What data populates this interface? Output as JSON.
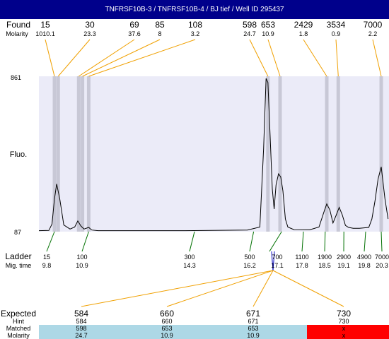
{
  "title": "TNFRSF10B-3 / TNFRSF10B-4 / BJ tief / Well ID 295437",
  "labels": {
    "found": "Found",
    "molarity": "Molarity",
    "fluo": "Fluo.",
    "ladder": "Ladder",
    "mig_time": "Mig. time",
    "expected": "Expected",
    "hint": "Hint",
    "matched": "Matched",
    "molarity_bottom": "Molarity"
  },
  "colors": {
    "title_bg": "#00008b",
    "plot_bg": "#ebebf8",
    "band": "#c8c8d6",
    "orange": "#f0a000",
    "green": "#007000",
    "blue": "#0000c0",
    "match_bg": "#add8e6",
    "nomatch_bg": "#ff0000",
    "trace": "#000000"
  },
  "chart_data": {
    "type": "line",
    "ylabel": "Fluo.",
    "ylim": [
      87,
      861
    ],
    "yticks": [
      "861",
      "87"
    ],
    "found": [
      {
        "size": "15",
        "molarity": "1010.1"
      },
      {
        "size": "30",
        "molarity": "23.3"
      },
      {
        "size": "69",
        "molarity": "37.6"
      },
      {
        "size": "85",
        "molarity": "8"
      },
      {
        "size": "108",
        "molarity": "3.2"
      },
      {
        "size": "598",
        "molarity": "24.7"
      },
      {
        "size": "653",
        "molarity": "10.9"
      },
      {
        "size": "2429",
        "molarity": "1.8"
      },
      {
        "size": "3534",
        "molarity": "0.9"
      },
      {
        "size": "7000",
        "molarity": "2.2"
      }
    ],
    "ladder": [
      {
        "size": "15",
        "time": "9.8"
      },
      {
        "size": "100",
        "time": "10.9"
      },
      {
        "size": "300",
        "time": "14.3"
      },
      {
        "size": "500",
        "time": "16.2"
      },
      {
        "size": "700",
        "time": "17.1"
      },
      {
        "size": "1100",
        "time": "17.8"
      },
      {
        "size": "1900",
        "time": "18.5"
      },
      {
        "size": "2900",
        "time": "19.1"
      },
      {
        "size": "4900",
        "time": "19.8"
      },
      {
        "size": "7000",
        "time": "20.3"
      }
    ],
    "trace_time": [
      9.3,
      9.62,
      9.72,
      9.8,
      9.87,
      9.97,
      10.1,
      10.3,
      10.45,
      10.55,
      10.65,
      10.75,
      10.9,
      11.0,
      11.2,
      14.0,
      16.0,
      16.4,
      16.52,
      16.6,
      16.66,
      16.72,
      16.8,
      16.86,
      16.92,
      17.0,
      17.07,
      17.14,
      17.22,
      17.3,
      17.5,
      18.0,
      18.3,
      18.47,
      18.55,
      18.65,
      18.75,
      18.85,
      18.95,
      19.05,
      19.15,
      19.25,
      19.4,
      19.6,
      19.9,
      20.0,
      20.1,
      20.2,
      20.3,
      20.42,
      20.52
    ],
    "trace_fluo": [
      92,
      93,
      125,
      250,
      325,
      250,
      120,
      100,
      110,
      140,
      115,
      100,
      108,
      95,
      92,
      92,
      95,
      110,
      500,
      850,
      830,
      600,
      300,
      200,
      320,
      375,
      360,
      290,
      150,
      110,
      97,
      96,
      110,
      190,
      225,
      195,
      130,
      168,
      208,
      170,
      118,
      108,
      104,
      104,
      108,
      150,
      240,
      350,
      410,
      250,
      150
    ],
    "expected": [
      {
        "expected": "584",
        "hint": "584",
        "matched": "598",
        "molarity": "24.7",
        "status": "matched"
      },
      {
        "expected": "660",
        "hint": "660",
        "matched": "653",
        "molarity": "10.9",
        "status": "matched"
      },
      {
        "expected": "671",
        "hint": "671",
        "matched": "653",
        "molarity": "10.9",
        "status": "matched"
      },
      {
        "expected": "730",
        "hint": "730",
        "matched": "x",
        "molarity": "x",
        "status": "unmatched"
      }
    ]
  }
}
